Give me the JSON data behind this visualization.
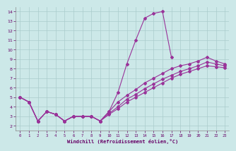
{
  "xlabel": "Windchill (Refroidissement éolien,°C)",
  "xlim": [
    -0.5,
    23.5
  ],
  "ylim": [
    1.5,
    14.5
  ],
  "xticks": [
    0,
    1,
    2,
    3,
    4,
    5,
    6,
    7,
    8,
    9,
    10,
    11,
    12,
    13,
    14,
    15,
    16,
    17,
    18,
    19,
    20,
    21,
    22,
    23
  ],
  "yticks": [
    2,
    3,
    4,
    5,
    6,
    7,
    8,
    9,
    10,
    11,
    12,
    13,
    14
  ],
  "bg_color": "#cce8e8",
  "line_color": "#993399",
  "grid_color": "#aacccc",
  "series1": {
    "x": [
      0,
      1,
      2,
      3,
      4,
      5,
      6,
      7,
      8,
      9,
      10,
      11,
      12,
      13,
      14,
      15,
      16,
      17
    ],
    "y": [
      5.0,
      4.5,
      2.5,
      3.5,
      3.2,
      2.5,
      3.0,
      3.0,
      3.0,
      2.5,
      3.5,
      5.5,
      8.5,
      11.0,
      13.3,
      13.8,
      14.0,
      9.2
    ]
  },
  "series2": {
    "x": [
      0,
      1,
      2,
      3,
      4,
      5,
      6,
      7,
      8,
      9,
      10,
      11,
      12,
      13,
      14,
      15,
      16,
      17,
      18,
      19,
      20,
      21,
      22,
      23
    ],
    "y": [
      5.0,
      4.5,
      2.5,
      3.5,
      3.2,
      2.5,
      3.0,
      3.0,
      3.0,
      2.5,
      3.5,
      4.5,
      5.2,
      5.8,
      6.5,
      7.0,
      7.5,
      8.0,
      8.3,
      8.5,
      8.8,
      9.2,
      8.8,
      8.5
    ]
  },
  "series3": {
    "x": [
      0,
      1,
      2,
      3,
      4,
      5,
      6,
      7,
      8,
      9,
      10,
      11,
      12,
      13,
      14,
      15,
      16,
      17,
      18,
      19,
      20,
      21,
      22,
      23
    ],
    "y": [
      5.0,
      4.5,
      2.5,
      3.5,
      3.2,
      2.5,
      3.0,
      3.0,
      3.0,
      2.5,
      3.3,
      4.0,
      4.8,
      5.3,
      5.9,
      6.4,
      6.9,
      7.3,
      7.7,
      8.0,
      8.3,
      8.7,
      8.5,
      8.3
    ]
  },
  "series4": {
    "x": [
      0,
      1,
      2,
      3,
      4,
      5,
      6,
      7,
      8,
      9,
      10,
      11,
      12,
      13,
      14,
      15,
      16,
      17,
      18,
      19,
      20,
      21,
      22,
      23
    ],
    "y": [
      5.0,
      4.5,
      2.5,
      3.5,
      3.2,
      2.5,
      3.0,
      3.0,
      3.0,
      2.5,
      3.2,
      3.8,
      4.5,
      5.0,
      5.5,
      6.0,
      6.5,
      7.0,
      7.4,
      7.7,
      8.0,
      8.3,
      8.2,
      8.1
    ]
  }
}
